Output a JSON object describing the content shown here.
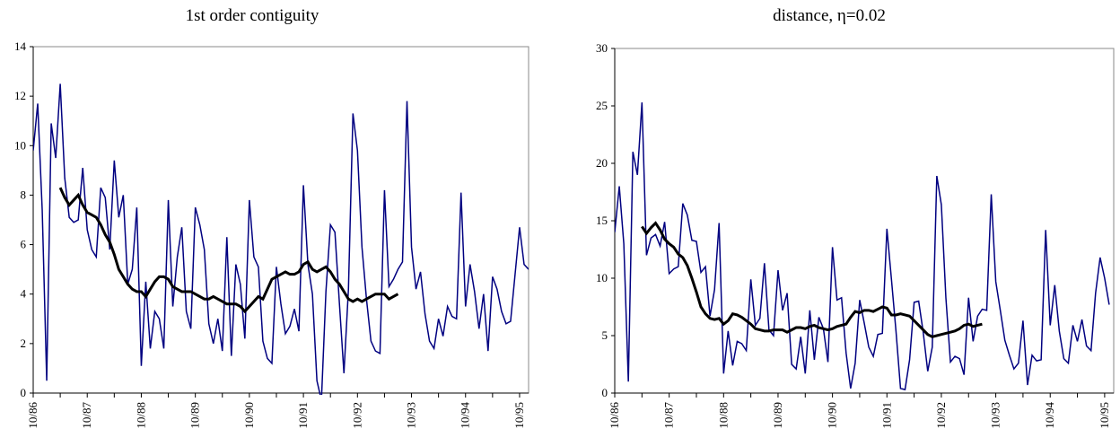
{
  "chart_data": [
    {
      "type": "line",
      "title": "1st order contiguity",
      "xlabel": "",
      "ylabel": "",
      "x_tick_labels": [
        "10/86",
        "10/87",
        "10/88",
        "10/89",
        "10/90",
        "10/91",
        "10/92",
        "10/93",
        "10/94",
        "10/95"
      ],
      "ylim": [
        0,
        14
      ],
      "y_ticks": [
        "0",
        "2",
        "4",
        "6",
        "8",
        "10",
        "12",
        "14"
      ],
      "grid": false,
      "series": [
        {
          "style": "raw",
          "color": "#000080",
          "x_start_month": 0,
          "values": [
            9.8,
            11.7,
            7.4,
            0.5,
            10.9,
            9.5,
            12.5,
            8.7,
            7.1,
            6.9,
            7.0,
            9.1,
            6.6,
            5.8,
            5.5,
            8.3,
            7.9,
            5.8,
            9.4,
            7.1,
            8.0,
            4.4,
            5.0,
            7.5,
            1.1,
            4.5,
            1.8,
            3.3,
            3.0,
            1.8,
            7.8,
            3.5,
            5.5,
            6.7,
            3.3,
            2.6,
            7.5,
            6.8,
            5.8,
            2.8,
            2.0,
            3.0,
            1.7,
            6.3,
            1.5,
            5.2,
            4.4,
            2.2,
            7.8,
            5.5,
            5.1,
            2.1,
            1.4,
            1.2,
            5.1,
            3.6,
            2.4,
            2.7,
            3.4,
            2.5,
            8.4,
            5.2,
            4.0,
            0.5,
            -0.3,
            4.1,
            6.8,
            6.5,
            3.6,
            0.8,
            4.2,
            11.3,
            9.8,
            5.9,
            3.8,
            2.1,
            1.7,
            1.6,
            8.2,
            4.3,
            4.6,
            5.0,
            5.3,
            11.8,
            5.9,
            4.2,
            4.9,
            3.2,
            2.1,
            1.8,
            3.0,
            2.3,
            3.5,
            3.1,
            3.0,
            8.1,
            3.5,
            5.2,
            4.1,
            2.6,
            4.0,
            1.7,
            4.7,
            4.2,
            3.3,
            2.8,
            2.9,
            4.8,
            6.7,
            5.2,
            5.0
          ]
        },
        {
          "style": "moving-average",
          "color": "#000000",
          "x_start_month": 6,
          "values": [
            8.3,
            7.9,
            7.6,
            7.8,
            8.0,
            7.6,
            7.3,
            7.2,
            7.1,
            6.8,
            6.4,
            6.1,
            5.6,
            5.0,
            4.7,
            4.4,
            4.2,
            4.1,
            4.1,
            3.9,
            4.2,
            4.5,
            4.7,
            4.7,
            4.6,
            4.3,
            4.2,
            4.1,
            4.1,
            4.1,
            4.0,
            3.9,
            3.8,
            3.8,
            3.9,
            3.8,
            3.7,
            3.6,
            3.6,
            3.6,
            3.5,
            3.3,
            3.5,
            3.7,
            3.9,
            3.8,
            4.2,
            4.6,
            4.7,
            4.8,
            4.9,
            4.8,
            4.8,
            4.9,
            5.2,
            5.3,
            5.0,
            4.9,
            5.0,
            5.1,
            4.9,
            4.6,
            4.4,
            4.1,
            3.8,
            3.7,
            3.8,
            3.7,
            3.8,
            3.9,
            4.0,
            4.0,
            4.0,
            3.8,
            3.9,
            4.0
          ]
        }
      ]
    },
    {
      "type": "line",
      "title": "distance, η=0.02",
      "xlabel": "",
      "ylabel": "",
      "x_tick_labels": [
        "10/86",
        "10/87",
        "10/88",
        "10/89",
        "10/90",
        "10/91",
        "10/92",
        "10/93",
        "10/94",
        "10/95"
      ],
      "ylim": [
        0,
        30
      ],
      "y_ticks": [
        "0",
        "5",
        "10",
        "15",
        "20",
        "25",
        "30"
      ],
      "grid": false,
      "series": [
        {
          "style": "raw",
          "color": "#000080",
          "x_start_month": 0,
          "values": [
            14.0,
            18.0,
            13.0,
            1.0,
            21.0,
            19.0,
            25.3,
            12.0,
            13.5,
            13.8,
            12.8,
            14.9,
            10.4,
            10.8,
            11.0,
            16.5,
            15.5,
            13.3,
            13.2,
            10.5,
            11.0,
            6.7,
            9.0,
            14.8,
            1.7,
            5.4,
            2.4,
            4.5,
            4.3,
            3.7,
            9.9,
            5.9,
            6.5,
            11.3,
            5.5,
            5.0,
            10.7,
            7.2,
            8.7,
            2.5,
            2.1,
            4.9,
            1.7,
            7.2,
            2.9,
            6.6,
            5.6,
            2.7,
            12.7,
            8.1,
            8.3,
            3.5,
            0.4,
            2.6,
            8.1,
            6.1,
            4.0,
            3.2,
            5.1,
            5.2,
            14.3,
            9.9,
            5.4,
            0.4,
            0.3,
            2.9,
            7.9,
            8.0,
            5.3,
            1.9,
            4.0,
            18.9,
            16.4,
            8.3,
            2.7,
            3.2,
            3.0,
            1.6,
            8.3,
            4.5,
            6.7,
            7.3,
            7.2,
            17.3,
            9.7,
            7.2,
            4.6,
            3.3,
            2.1,
            2.6,
            6.3,
            0.7,
            3.3,
            2.8,
            2.9,
            14.2,
            5.9,
            9.4,
            5.4,
            3.0,
            2.6,
            5.9,
            4.5,
            6.4,
            4.1,
            3.7,
            8.7,
            11.8,
            10.0,
            7.7
          ]
        },
        {
          "style": "moving-average",
          "color": "#000000",
          "x_start_month": 6,
          "values": [
            14.5,
            13.9,
            14.4,
            14.8,
            14.2,
            13.4,
            13.0,
            12.7,
            12.1,
            11.8,
            11.1,
            10.0,
            8.8,
            7.5,
            6.9,
            6.5,
            6.4,
            6.5,
            6.0,
            6.3,
            6.9,
            6.8,
            6.6,
            6.3,
            6.0,
            5.6,
            5.5,
            5.4,
            5.4,
            5.5,
            5.5,
            5.5,
            5.3,
            5.5,
            5.7,
            5.7,
            5.6,
            5.8,
            5.9,
            5.7,
            5.6,
            5.5,
            5.6,
            5.8,
            5.9,
            6.0,
            6.6,
            7.1,
            7.0,
            7.2,
            7.2,
            7.1,
            7.3,
            7.5,
            7.4,
            6.8,
            6.8,
            6.9,
            6.8,
            6.7,
            6.3,
            5.9,
            5.5,
            5.1,
            4.9,
            5.0,
            5.1,
            5.2,
            5.3,
            5.4,
            5.6,
            5.9,
            6.0,
            5.8,
            5.9,
            6.0
          ]
        }
      ]
    }
  ]
}
